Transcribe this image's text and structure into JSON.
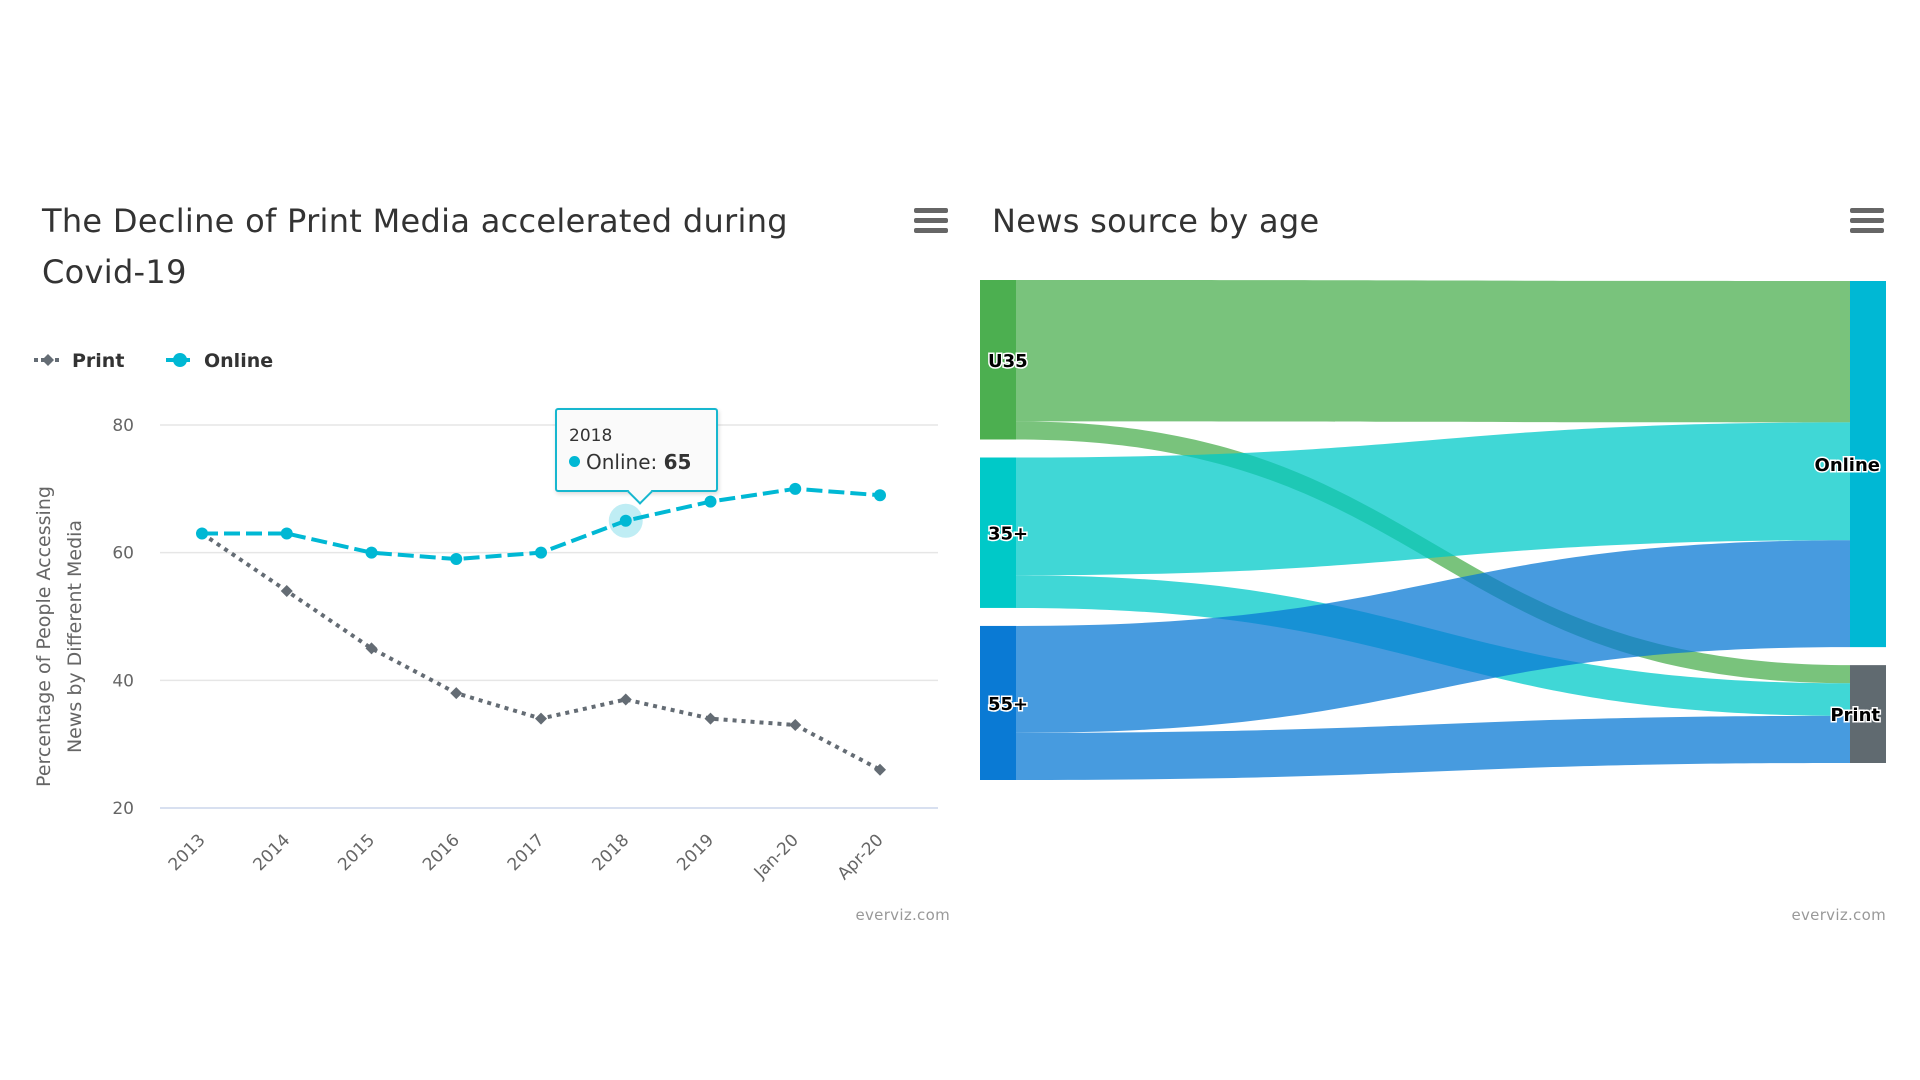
{
  "line_chart": {
    "menu_icon": "hamburger-menu-icon",
    "credit": "everviz.com",
    "tooltip": {
      "header": "2018",
      "series": "Online",
      "value": "65",
      "color": "#00b8d4"
    }
  },
  "sankey_chart": {
    "menu_icon": "hamburger-menu-icon",
    "credit": "everviz.com"
  },
  "chart_data": [
    {
      "type": "line",
      "title": "The Decline of Print Media accelerated during Covid-19",
      "xlabel": "",
      "ylabel": "Percentage of People Accessing News by Different Media",
      "ylim": [
        20,
        80
      ],
      "yticks": [
        20,
        40,
        60,
        80
      ],
      "grid": true,
      "legend_position": "top-left",
      "categories": [
        "2013",
        "2014",
        "2015",
        "2016",
        "2017",
        "2018",
        "2019",
        "Jan-20",
        "Apr-20"
      ],
      "series": [
        {
          "name": "Print",
          "color": "#646c74",
          "dash": "dotted",
          "marker": "diamond",
          "values": [
            63,
            54,
            45,
            38,
            34,
            37,
            34,
            33,
            26
          ]
        },
        {
          "name": "Online",
          "color": "#00b8d4",
          "dash": "dashed",
          "marker": "circle",
          "values": [
            63,
            63,
            60,
            59,
            60,
            65,
            68,
            70,
            69
          ]
        }
      ]
    },
    {
      "type": "sankey",
      "title": "News source by age",
      "nodes": [
        {
          "id": "U35",
          "label": "U35",
          "color": "#4caf50",
          "column": 0
        },
        {
          "id": "35+",
          "label": "35+",
          "color": "#00c9c8",
          "column": 0
        },
        {
          "id": "55+",
          "label": "55+",
          "color": "#0a7ad4",
          "column": 0
        },
        {
          "id": "Online",
          "label": "Online",
          "color": "#00b8d4",
          "column": 1
        },
        {
          "id": "Print",
          "label": "Print",
          "color": "#606a70",
          "column": 1
        }
      ],
      "links": [
        {
          "from": "U35",
          "to": "Online",
          "weight": 78,
          "color": "#4caf50"
        },
        {
          "from": "U35",
          "to": "Print",
          "weight": 10,
          "color": "#4caf50"
        },
        {
          "from": "35+",
          "to": "Online",
          "weight": 65,
          "color": "#00c9c8"
        },
        {
          "from": "35+",
          "to": "Print",
          "weight": 18,
          "color": "#00c9c8"
        },
        {
          "from": "55+",
          "to": "Online",
          "weight": 59,
          "color": "#0a7ad4"
        },
        {
          "from": "55+",
          "to": "Print",
          "weight": 26,
          "color": "#0a7ad4"
        }
      ]
    }
  ]
}
